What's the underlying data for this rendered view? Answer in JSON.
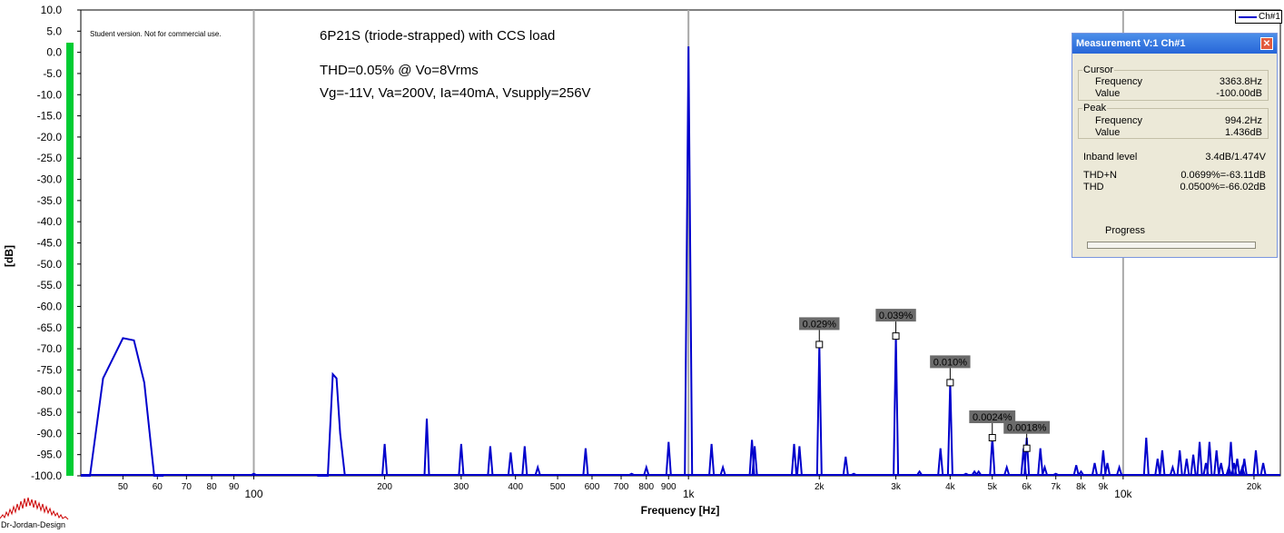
{
  "chart_data": {
    "type": "line",
    "title": "6P21S (triode-strapped) with CCS load",
    "annotations": [
      "THD=0.05% @ Vo=8Vrms",
      "Vg=-11V, Va=200V, Ia=40mA, Vsupply=256V"
    ],
    "watermark": "Student version. Not for commercial use.",
    "xlabel": "Frequency [Hz]",
    "ylabel": "[dB]",
    "x_scale": "log",
    "xlim": [
      40,
      23000
    ],
    "ylim": [
      -100,
      10
    ],
    "y_ticks": [
      "10.0",
      "5.0",
      "0.0",
      "-5.0",
      "-10.0",
      "-15.0",
      "-20.0",
      "-25.0",
      "-30.0",
      "-35.0",
      "-40.0",
      "-45.0",
      "-50.0",
      "-55.0",
      "-60.0",
      "-65.0",
      "-70.0",
      "-75.0",
      "-80.0",
      "-85.0",
      "-90.0",
      "-95.0",
      "-100.0"
    ],
    "x_ticks": [
      {
        "v": 50,
        "t": "50"
      },
      {
        "v": 60,
        "t": "60"
      },
      {
        "v": 70,
        "t": "70"
      },
      {
        "v": 80,
        "t": "80"
      },
      {
        "v": 90,
        "t": "90"
      },
      {
        "v": 100,
        "t": "100"
      },
      {
        "v": 200,
        "t": "200"
      },
      {
        "v": 300,
        "t": "300"
      },
      {
        "v": 400,
        "t": "400"
      },
      {
        "v": 500,
        "t": "500"
      },
      {
        "v": 600,
        "t": "600"
      },
      {
        "v": 700,
        "t": "700"
      },
      {
        "v": 800,
        "t": "800"
      },
      {
        "v": 900,
        "t": "900"
      },
      {
        "v": 1000,
        "t": "1k"
      },
      {
        "v": 2000,
        "t": "2k"
      },
      {
        "v": 3000,
        "t": "3k"
      },
      {
        "v": 4000,
        "t": "4k"
      },
      {
        "v": 5000,
        "t": "5k"
      },
      {
        "v": 6000,
        "t": "6k"
      },
      {
        "v": 7000,
        "t": "7k"
      },
      {
        "v": 8000,
        "t": "8k"
      },
      {
        "v": 9000,
        "t": "9k"
      },
      {
        "v": 10000,
        "t": "10k"
      },
      {
        "v": 20000,
        "t": "20k"
      }
    ],
    "major_gridlines": [
      100,
      1000,
      10000
    ],
    "legend": {
      "entry": "Ch#1",
      "position": "top-right"
    },
    "series": [
      {
        "name": "Ch#1",
        "color": "#0000cc",
        "smooth_segments": [
          [
            [
              40,
              -100
            ],
            [
              42,
              -100
            ],
            [
              45,
              -77
            ],
            [
              50,
              -67.5
            ],
            [
              53,
              -68
            ],
            [
              56,
              -78
            ],
            [
              59,
              -100
            ],
            [
              62,
              -100
            ]
          ],
          [
            [
              140,
              -100
            ],
            [
              148,
              -100
            ],
            [
              152,
              -76
            ],
            [
              155,
              -77
            ],
            [
              158,
              -90
            ],
            [
              162,
              -100
            ]
          ]
        ],
        "spikes": [
          [
            100,
            -99.5
          ],
          [
            200,
            -92.5
          ],
          [
            250,
            -86.5
          ],
          [
            300,
            -92.5
          ],
          [
            350,
            -93
          ],
          [
            390,
            -94.5
          ],
          [
            420,
            -93
          ],
          [
            450,
            -98
          ],
          [
            580,
            -93.5
          ],
          [
            740,
            -99.5
          ],
          [
            800,
            -98
          ],
          [
            900,
            -92
          ],
          [
            1000,
            1.4
          ],
          [
            1130,
            -92.5
          ],
          [
            1200,
            -98
          ],
          [
            1400,
            -91.5
          ],
          [
            1420,
            -93
          ],
          [
            1750,
            -92.5
          ],
          [
            1800,
            -93
          ],
          [
            2000,
            -69
          ],
          [
            2300,
            -95.5
          ],
          [
            2400,
            -99.5
          ],
          [
            3000,
            -67
          ],
          [
            3400,
            -99
          ],
          [
            3800,
            -93.5
          ],
          [
            4000,
            -78
          ],
          [
            4350,
            -99.5
          ],
          [
            4550,
            -99
          ],
          [
            4650,
            -99
          ],
          [
            5000,
            -91
          ],
          [
            5400,
            -98
          ],
          [
            5900,
            -93.5
          ],
          [
            6000,
            -91
          ],
          [
            6450,
            -93.5
          ],
          [
            6600,
            -98
          ],
          [
            7000,
            -99.5
          ],
          [
            7800,
            -97.5
          ],
          [
            8000,
            -99
          ],
          [
            8600,
            -97
          ],
          [
            9000,
            -94
          ],
          [
            9200,
            -97
          ],
          [
            9800,
            -98
          ],
          [
            11300,
            -91
          ],
          [
            12000,
            -96
          ],
          [
            12300,
            -94
          ],
          [
            13000,
            -98
          ],
          [
            13500,
            -94
          ],
          [
            14000,
            -96
          ],
          [
            14500,
            -95
          ],
          [
            15000,
            -92
          ],
          [
            15500,
            -97
          ],
          [
            15800,
            -92
          ],
          [
            16400,
            -94
          ],
          [
            16800,
            -97
          ],
          [
            17500,
            -98
          ],
          [
            17700,
            -92
          ],
          [
            18000,
            -97
          ],
          [
            18300,
            -96
          ],
          [
            18800,
            -98
          ],
          [
            19000,
            -96
          ],
          [
            20200,
            -94
          ],
          [
            21000,
            -97
          ]
        ]
      }
    ],
    "markers": [
      {
        "x": 2000,
        "y": -69,
        "label": "0.029%"
      },
      {
        "x": 3000,
        "y": -67,
        "label": "0.039%"
      },
      {
        "x": 4000,
        "y": -78,
        "label": "0.010%"
      },
      {
        "x": 5000,
        "y": -91,
        "label": "0.0024%"
      },
      {
        "x": 6000,
        "y": -93.5,
        "label": "0.0018%"
      }
    ],
    "level_bar": {
      "value_db": 0,
      "color": "#00cc33"
    }
  },
  "measurement_panel": {
    "title": "Measurement V:1 Ch#1",
    "close_label": "✕",
    "cursor": {
      "title": "Cursor",
      "frequency_label": "Frequency",
      "frequency": "3363.8Hz",
      "value_label": "Value",
      "value": "-100.00dB"
    },
    "peak": {
      "title": "Peak",
      "frequency_label": "Frequency",
      "frequency": "994.2Hz",
      "value_label": "Value",
      "value": "1.436dB"
    },
    "inband_label": "Inband level",
    "inband": "3.4dB/1.474V",
    "thdn_label": "THD+N",
    "thdn": "0.0699%=-63.11dB",
    "thd_label": "THD",
    "thd": "0.0500%=-66.02dB",
    "progress_label": "Progress"
  },
  "logo_text": "Dr-Jordan-Design"
}
